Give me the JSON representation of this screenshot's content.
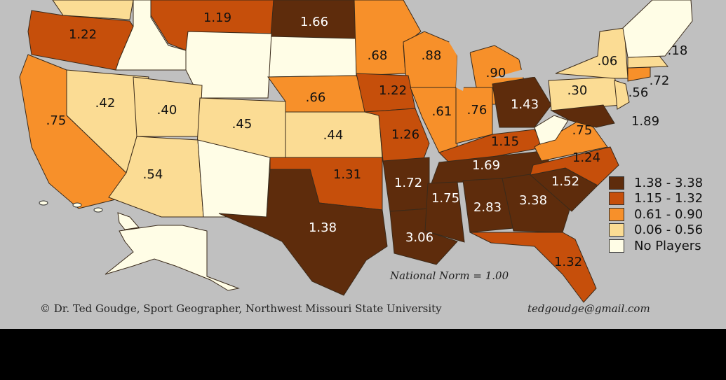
{
  "colors": {
    "background": "#c0c0c0",
    "classes": [
      "#5e2c0c",
      "#c64f0b",
      "#f7902a",
      "#fbdc94",
      "#fffde6"
    ]
  },
  "legend": [
    {
      "label": "1.38 - 3.38",
      "class": 0
    },
    {
      "label": "1.15 - 1.32",
      "class": 1
    },
    {
      "label": "0.61 - 0.90",
      "class": 2
    },
    {
      "label": "0.06 - 0.56",
      "class": 3
    },
    {
      "label": "No Players",
      "class": 4
    }
  ],
  "states": [
    {
      "value": "",
      "class": 3
    },
    {
      "value": "1.22",
      "class": 1
    },
    {
      "value": "",
      "class": 4
    },
    {
      "value": "1.19",
      "class": 1
    },
    {
      "value": "1.66",
      "class": 0
    },
    {
      "value": "",
      "class": 4
    },
    {
      "value": "",
      "class": 4
    },
    {
      "value": ".68",
      "class": 2
    },
    {
      "value": ".88",
      "class": 2
    },
    {
      "value": ".90",
      "class": 2
    },
    {
      "value": ".42",
      "class": 3
    },
    {
      "value": ".75",
      "class": 2
    },
    {
      "value": ".40",
      "class": 3
    },
    {
      "value": ".45",
      "class": 3
    },
    {
      "value": ".54",
      "class": 3
    },
    {
      "value": "",
      "class": 4
    },
    {
      "value": ".66",
      "class": 2
    },
    {
      "value": ".44",
      "class": 3
    },
    {
      "value": "1.31",
      "class": 1
    },
    {
      "value": "1.38",
      "class": 0
    },
    {
      "value": "1.22",
      "class": 1
    },
    {
      "value": "1.26",
      "class": 1
    },
    {
      "value": "1.72",
      "class": 0
    },
    {
      "value": "3.06",
      "class": 0
    },
    {
      "value": ".61",
      "class": 2
    },
    {
      "value": ".76",
      "class": 2
    },
    {
      "value": "1.43",
      "class": 0
    },
    {
      "value": "1.15",
      "class": 1
    },
    {
      "value": "1.69",
      "class": 0
    },
    {
      "value": "1.75",
      "class": 0
    },
    {
      "value": "2.83",
      "class": 0
    },
    {
      "value": "3.38",
      "class": 0
    },
    {
      "value": "1.32",
      "class": 1
    },
    {
      "value": "1.52",
      "class": 0
    },
    {
      "value": "1.24",
      "class": 1
    },
    {
      "value": ".75",
      "class": 2
    },
    {
      "value": "",
      "class": 4
    },
    {
      "value": ".30",
      "class": 3
    },
    {
      "value": ".06",
      "class": 3
    },
    {
      "value": "1.89",
      "class": 0
    },
    {
      "value": ".56",
      "class": 3
    },
    {
      "value": ".72",
      "class": 2
    },
    {
      "value": ".18",
      "class": 3
    },
    {
      "value": "",
      "class": 4
    },
    {
      "value": "",
      "class": 4
    },
    {
      "value": "",
      "class": 4
    }
  ],
  "norm_text": "National Norm = 1.00",
  "credit": "© Dr. Ted Goudge, Sport Geographer,  Northwest Missouri State University",
  "email": "tedgoudge@gmail.com"
}
